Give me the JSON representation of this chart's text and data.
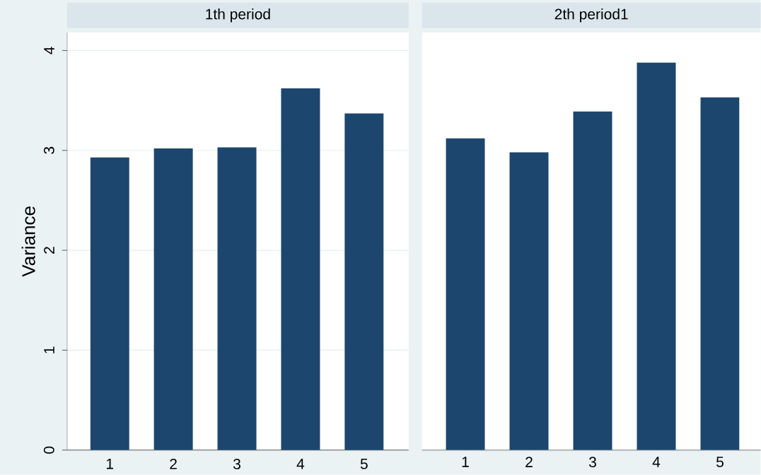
{
  "chart_data": [
    {
      "type": "bar",
      "title": "1th period",
      "ylabel": "Variance",
      "categories": [
        "1",
        "2",
        "3",
        "4",
        "5"
      ],
      "values": [
        2.93,
        3.02,
        3.03,
        3.62,
        3.37
      ],
      "color": "#1c466e",
      "ylim": [
        0,
        4.18
      ],
      "yticks": [
        0,
        1,
        2,
        3,
        4
      ],
      "grid": "y"
    },
    {
      "type": "bar",
      "title": "2th period1",
      "categories": [
        "1",
        "2",
        "3",
        "4",
        "5"
      ],
      "values": [
        3.12,
        2.98,
        3.39,
        3.88,
        3.53
      ],
      "color": "#1c466e",
      "ylim": [
        0,
        4.18
      ],
      "yticks": [
        0,
        1,
        2,
        3,
        4
      ],
      "grid": "y",
      "tick_labels": "x"
    }
  ]
}
